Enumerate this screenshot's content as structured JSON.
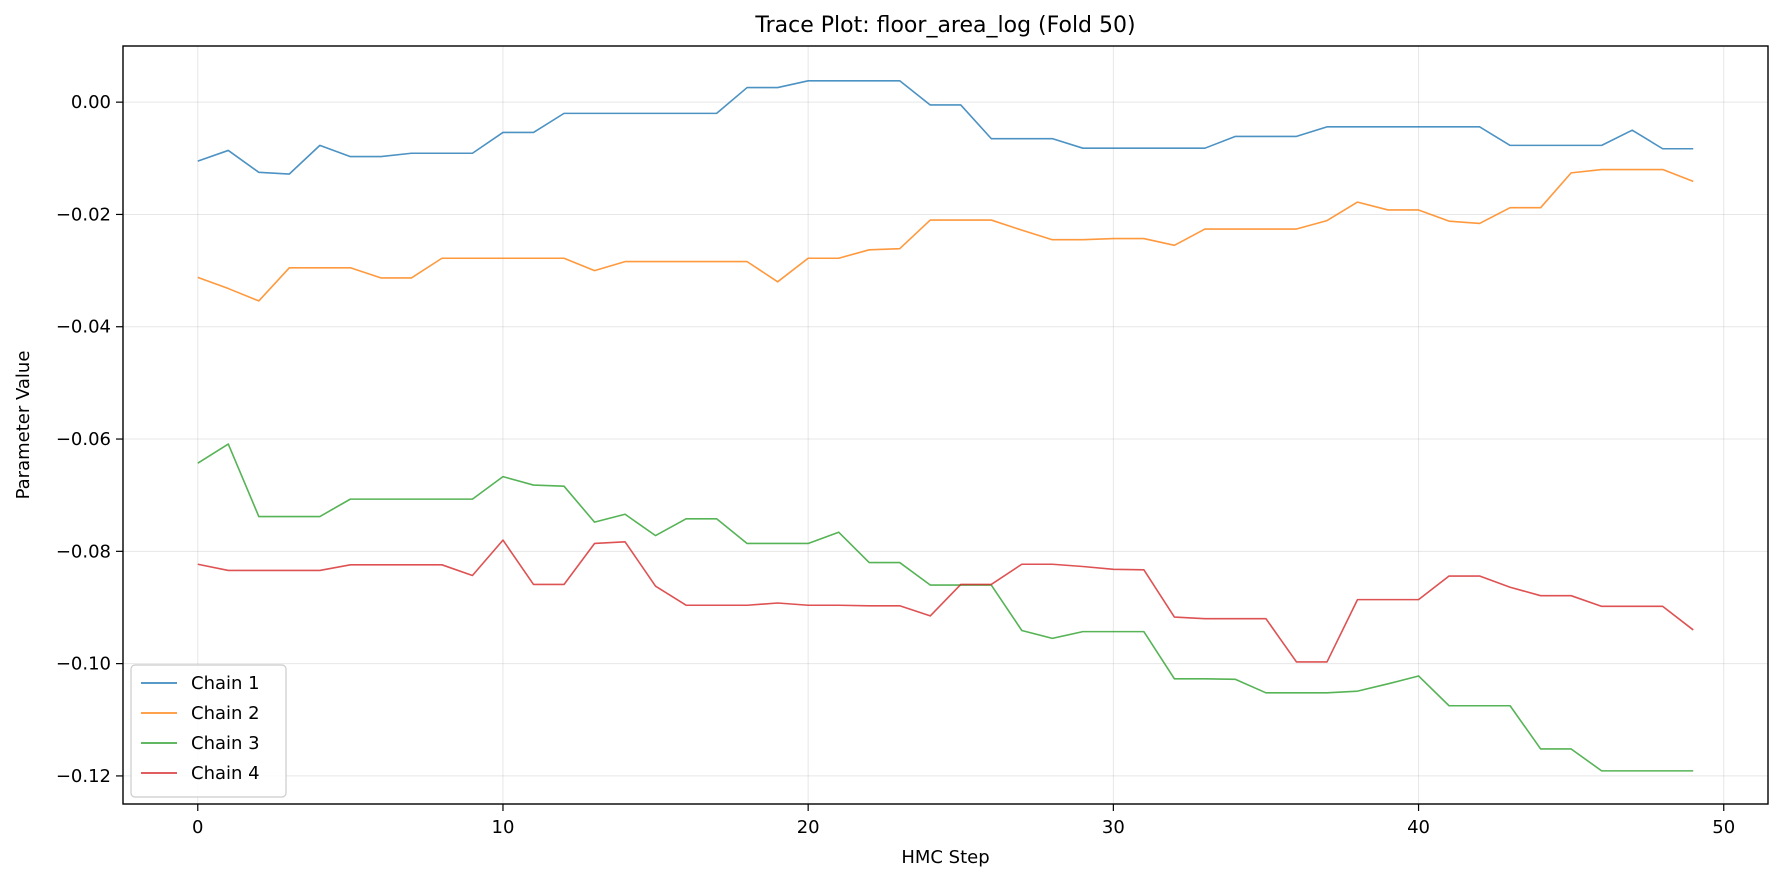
{
  "chart_data": {
    "type": "line",
    "title": "Trace Plot: floor_area_log (Fold 50)",
    "xlabel": "HMC Step",
    "ylabel": "Parameter Value",
    "xlim": [
      -2.45,
      51.45
    ],
    "ylim": [
      -0.125,
      0.01
    ],
    "xticks": [
      0,
      10,
      20,
      30,
      40,
      50
    ],
    "xtick_labels": [
      "0",
      "10",
      "20",
      "30",
      "40",
      "50"
    ],
    "yticks": [
      0.0,
      -0.02,
      -0.04,
      -0.06,
      -0.08,
      -0.1,
      -0.12
    ],
    "ytick_labels": [
      "0.00",
      "−0.02",
      "−0.04",
      "−0.06",
      "−0.08",
      "−0.10",
      "−0.12"
    ],
    "grid": true,
    "legend_position": "lower-left",
    "x": [
      0,
      1,
      2,
      3,
      4,
      5,
      6,
      7,
      8,
      9,
      10,
      11,
      12,
      13,
      14,
      15,
      16,
      17,
      18,
      19,
      20,
      21,
      22,
      23,
      24,
      25,
      26,
      27,
      28,
      29,
      30,
      31,
      32,
      33,
      34,
      35,
      36,
      37,
      38,
      39,
      40,
      41,
      42,
      43,
      44,
      45,
      46,
      47,
      48,
      49
    ],
    "series": [
      {
        "name": "Chain 1",
        "color": "#1f77b4",
        "values": [
          -0.0105,
          -0.0086,
          -0.0125,
          -0.0128,
          -0.0077,
          -0.0097,
          -0.0097,
          -0.0091,
          -0.0091,
          -0.0091,
          -0.0054,
          -0.0054,
          -0.002,
          -0.002,
          -0.002,
          -0.002,
          -0.002,
          -0.002,
          0.0026,
          0.0026,
          0.0038,
          0.0038,
          0.0038,
          0.0038,
          -0.0005,
          -0.0005,
          -0.0065,
          -0.0065,
          -0.0065,
          -0.0082,
          -0.0082,
          -0.0082,
          -0.0082,
          -0.0082,
          -0.0061,
          -0.0061,
          -0.0061,
          -0.0044,
          -0.0044,
          -0.0044,
          -0.0044,
          -0.0044,
          -0.0044,
          -0.0077,
          -0.0077,
          -0.0077,
          -0.0077,
          -0.005,
          -0.0083,
          -0.0083
        ]
      },
      {
        "name": "Chain 2",
        "color": "#ff7f0e",
        "values": [
          -0.0312,
          -0.0332,
          -0.0354,
          -0.0295,
          -0.0295,
          -0.0295,
          -0.0313,
          -0.0313,
          -0.0278,
          -0.0278,
          -0.0278,
          -0.0278,
          -0.0278,
          -0.03,
          -0.0284,
          -0.0284,
          -0.0284,
          -0.0284,
          -0.0284,
          -0.032,
          -0.0278,
          -0.0278,
          -0.0263,
          -0.0261,
          -0.021,
          -0.021,
          -0.021,
          -0.0228,
          -0.0245,
          -0.0245,
          -0.0243,
          -0.0243,
          -0.0255,
          -0.0226,
          -0.0226,
          -0.0226,
          -0.0226,
          -0.0211,
          -0.0178,
          -0.0192,
          -0.0192,
          -0.0212,
          -0.0216,
          -0.0188,
          -0.0188,
          -0.0126,
          -0.012,
          -0.012,
          -0.012,
          -0.0141
        ]
      },
      {
        "name": "Chain 3",
        "color": "#2ca02c",
        "values": [
          -0.0643,
          -0.0609,
          -0.0738,
          -0.0738,
          -0.0738,
          -0.0707,
          -0.0707,
          -0.0707,
          -0.0707,
          -0.0707,
          -0.0667,
          -0.0682,
          -0.0684,
          -0.0748,
          -0.0734,
          -0.0772,
          -0.0742,
          -0.0742,
          -0.0786,
          -0.0786,
          -0.0786,
          -0.0766,
          -0.082,
          -0.082,
          -0.086,
          -0.086,
          -0.086,
          -0.0941,
          -0.0955,
          -0.0943,
          -0.0943,
          -0.0943,
          -0.1027,
          -0.1027,
          -0.1028,
          -0.1052,
          -0.1052,
          -0.1052,
          -0.1049,
          -0.1036,
          -0.1022,
          -0.1075,
          -0.1075,
          -0.1075,
          -0.1152,
          -0.1152,
          -0.1191,
          -0.1191,
          -0.1191,
          -0.1191
        ]
      },
      {
        "name": "Chain 4",
        "color": "#d62728",
        "values": [
          -0.0823,
          -0.0834,
          -0.0834,
          -0.0834,
          -0.0834,
          -0.0824,
          -0.0824,
          -0.0824,
          -0.0824,
          -0.0843,
          -0.078,
          -0.0859,
          -0.0859,
          -0.0786,
          -0.0783,
          -0.0862,
          -0.0896,
          -0.0896,
          -0.0896,
          -0.0892,
          -0.0896,
          -0.0896,
          -0.0897,
          -0.0897,
          -0.0915,
          -0.0859,
          -0.0859,
          -0.0823,
          -0.0823,
          -0.0827,
          -0.0832,
          -0.0833,
          -0.0917,
          -0.092,
          -0.092,
          -0.092,
          -0.0997,
          -0.0997,
          -0.0886,
          -0.0886,
          -0.0886,
          -0.0844,
          -0.0844,
          -0.0864,
          -0.0879,
          -0.0879,
          -0.0898,
          -0.0898,
          -0.0898,
          -0.094
        ]
      }
    ]
  }
}
